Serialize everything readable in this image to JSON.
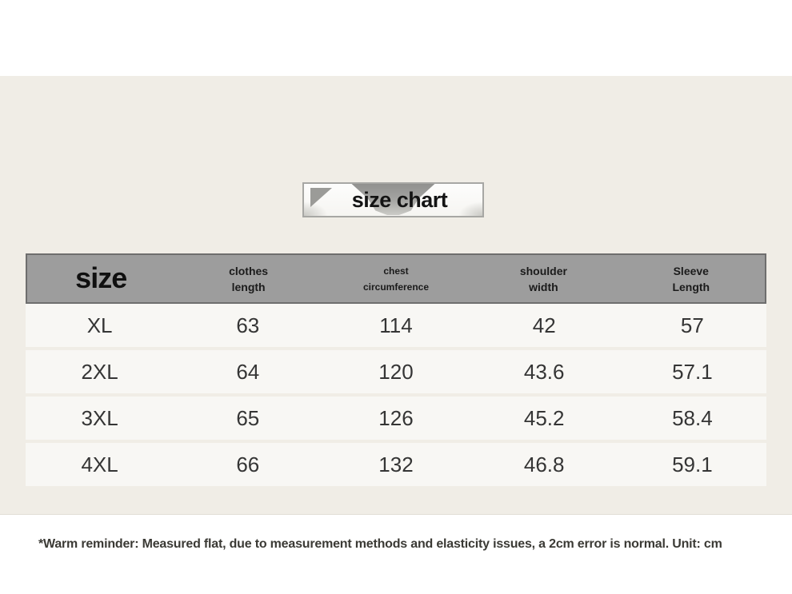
{
  "title_badge": {
    "label": "size chart"
  },
  "size_table": {
    "header": {
      "size_label": "size",
      "columns": [
        {
          "line1": "clothes",
          "line2": "length"
        },
        {
          "line1": "chest",
          "line2": "circumference"
        },
        {
          "line1": "shoulder",
          "line2": "width"
        },
        {
          "line1": "Sleeve",
          "line2": "Length"
        }
      ]
    },
    "rows": [
      {
        "size": "XL",
        "clothes_length": "63",
        "chest_circumference": "114",
        "shoulder_width": "42",
        "sleeve_length": "57"
      },
      {
        "size": "2XL",
        "clothes_length": "64",
        "chest_circumference": "120",
        "shoulder_width": "43.6",
        "sleeve_length": "57.1"
      },
      {
        "size": "3XL",
        "clothes_length": "65",
        "chest_circumference": "126",
        "shoulder_width": "45.2",
        "sleeve_length": "58.4"
      },
      {
        "size": "4XL",
        "clothes_length": "66",
        "chest_circumference": "132",
        "shoulder_width": "46.8",
        "sleeve_length": "59.1"
      }
    ]
  },
  "footnote": {
    "text": "*Warm reminder: Measured flat, due to measurement methods and elasticity issues, a 2cm error is normal. Unit: cm"
  },
  "colors": {
    "panel_background": "#f0ede6",
    "header_fill": "#9d9d9d",
    "header_border": "#6e6e6e",
    "row_fill": "#f8f7f4",
    "decor_gray": "#9b9b98"
  },
  "chart_data": {
    "type": "table",
    "title": "size chart",
    "columns": [
      "size",
      "clothes length",
      "chest circumference",
      "shoulder width",
      "Sleeve Length"
    ],
    "rows": [
      [
        "XL",
        63,
        114,
        42,
        57
      ],
      [
        "2XL",
        64,
        120,
        43.6,
        57.1
      ],
      [
        "3XL",
        65,
        126,
        45.2,
        58.4
      ],
      [
        "4XL",
        66,
        132,
        46.8,
        59.1
      ]
    ],
    "unit": "cm",
    "note": "*Warm reminder: Measured flat, due to measurement methods and elasticity issues, a 2cm error is normal. Unit: cm"
  }
}
